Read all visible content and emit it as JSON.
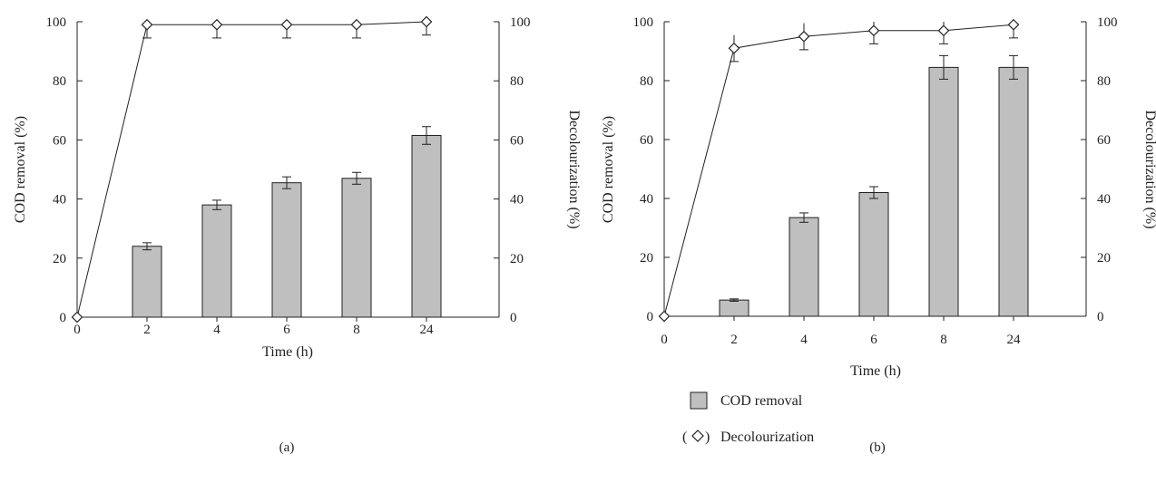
{
  "legend": {
    "bar_label": "COD removal",
    "line_label": "Decolourization",
    "line_prefix": "(",
    "line_suffix": ")"
  },
  "colors": {
    "bar_fill": "#bfbfbf",
    "stroke": "#231f20",
    "marker_fill": "#ffffff"
  },
  "chart_data": [
    {
      "type": "bar",
      "panel_label": "(a)",
      "categories": [
        "0",
        "2",
        "4",
        "6",
        "8",
        "24"
      ],
      "xlabel": "Time (h)",
      "ylabel": "COD removal (%)",
      "y2label": "Decolourization (%)",
      "ylim": [
        0,
        100
      ],
      "y2lim": [
        0,
        100
      ],
      "yticks": [
        "0",
        "20",
        "40",
        "60",
        "80",
        "100"
      ],
      "y2ticks": [
        "0",
        "20",
        "40",
        "60",
        "80",
        "100"
      ],
      "series": [
        {
          "name": "COD removal",
          "kind": "bar",
          "axis": "left",
          "values": [
            0,
            24,
            38,
            45.5,
            47,
            61.5
          ],
          "errors": [
            0,
            1.2,
            1.6,
            2.0,
            2.0,
            3.0
          ]
        },
        {
          "name": "Decolourization",
          "kind": "line",
          "axis": "right",
          "marker": "diamond",
          "values": [
            0,
            99,
            99,
            99,
            99,
            100
          ],
          "errors": [
            0,
            4.5,
            4.5,
            4.5,
            4.5,
            4.5
          ]
        }
      ]
    },
    {
      "type": "bar",
      "panel_label": "(b)",
      "categories": [
        "0",
        "2",
        "4",
        "6",
        "8",
        "24"
      ],
      "xlabel": "Time (h)",
      "ylabel": "COD removal (%)",
      "y2label": "Decolourization (%)",
      "ylim": [
        0,
        100
      ],
      "y2lim": [
        0,
        100
      ],
      "yticks": [
        "0",
        "20",
        "40",
        "60",
        "80",
        "100"
      ],
      "y2ticks": [
        "0",
        "20",
        "40",
        "60",
        "80",
        "100"
      ],
      "series": [
        {
          "name": "COD removal",
          "kind": "bar",
          "axis": "left",
          "values": [
            0,
            5.5,
            33.5,
            42,
            84.5,
            84.5
          ],
          "errors": [
            0,
            0.4,
            1.6,
            2.0,
            4.0,
            4.0
          ]
        },
        {
          "name": "Decolourization",
          "kind": "line",
          "axis": "right",
          "marker": "diamond",
          "values": [
            0,
            91,
            95,
            97,
            97,
            99
          ],
          "errors": [
            0,
            4.5,
            4.5,
            4.5,
            4.5,
            4.5
          ]
        }
      ]
    }
  ]
}
